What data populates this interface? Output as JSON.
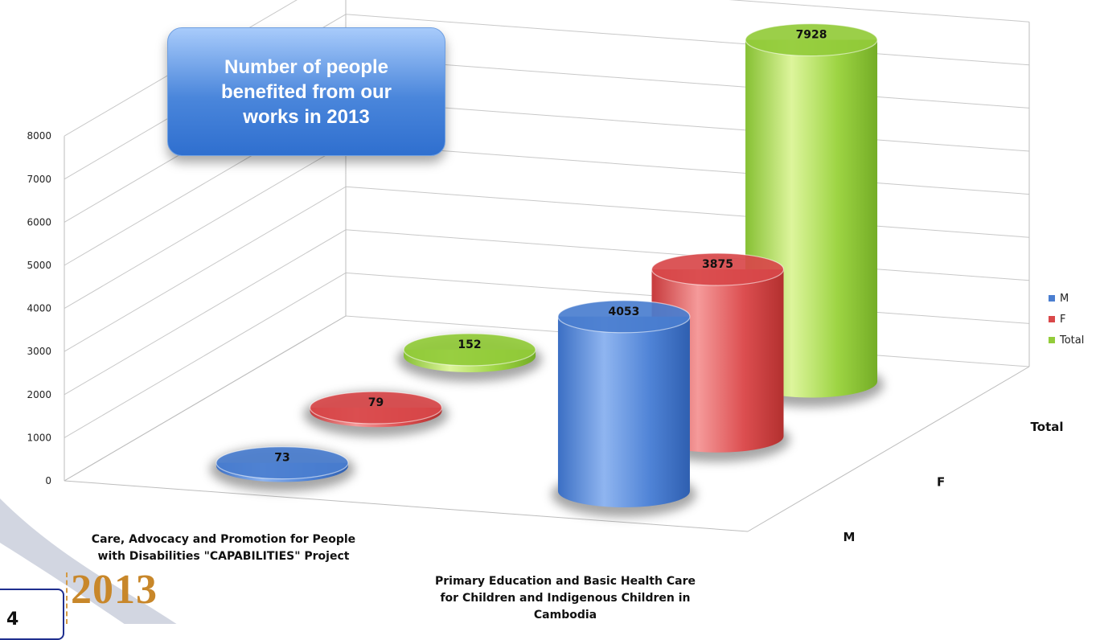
{
  "chart_data": {
    "type": "bar",
    "subtype": "3d-cylinder",
    "title": "Number of people benefited from our works in 2013",
    "categories": [
      "Care, Advocacy and Promotion for People with Disabilities \"CAPABILITIES\" Project",
      "Primary Education and Basic Health Care for Children and Indigenous Children in Cambodia"
    ],
    "category_lines": [
      [
        "Care, Advocacy and Promotion for People",
        "with Disabilities \"CAPABILITIES\" Project"
      ],
      [
        "Primary Education and Basic Health Care",
        "for Children and Indigenous Children in",
        "Cambodia"
      ]
    ],
    "series": [
      {
        "name": "M",
        "values": [
          73,
          4053
        ],
        "color": "#4a7ed0"
      },
      {
        "name": "F",
        "values": [
          79,
          3875
        ],
        "color": "#d9484a"
      },
      {
        "name": "Total",
        "values": [
          152,
          7928
        ],
        "color": "#93cc3a"
      }
    ],
    "depth_labels": [
      "M",
      "F",
      "Total"
    ],
    "legend_position": "right",
    "y_ticks": [
      0,
      1000,
      2000,
      3000,
      4000,
      5000,
      6000,
      7000,
      8000
    ],
    "ylim": [
      0,
      8000
    ],
    "grid": true
  },
  "footer": {
    "number": "4",
    "year": "2013"
  }
}
